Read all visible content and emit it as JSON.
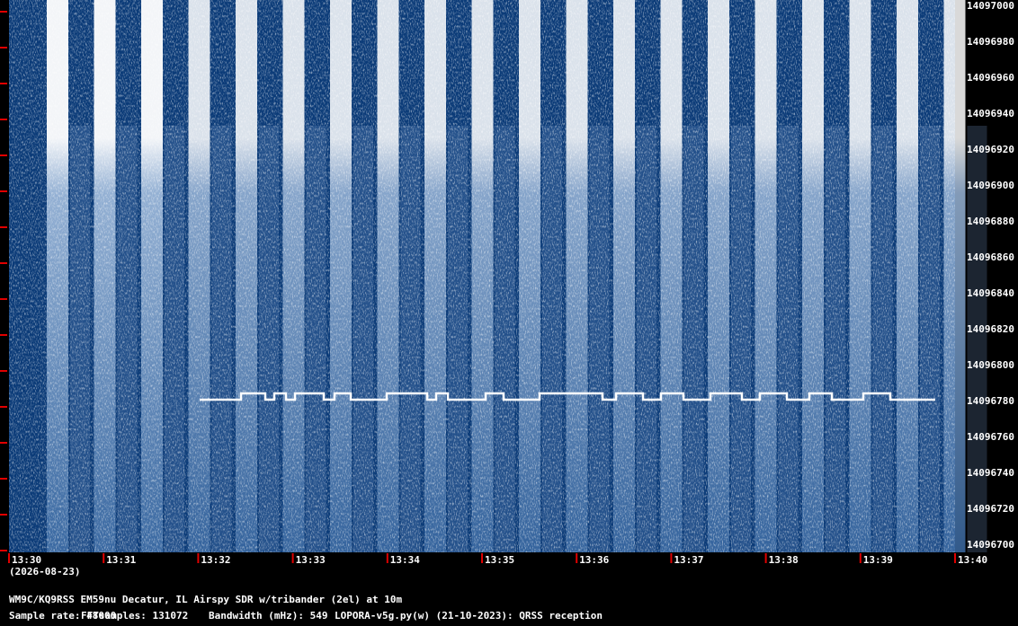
{
  "chart_data": {
    "type": "spectrogram",
    "ylim": [
      14096700,
      14097000
    ],
    "yticks": [
      14096700,
      14096720,
      14096740,
      14096760,
      14096780,
      14096800,
      14096820,
      14096840,
      14096860,
      14096880,
      14096900,
      14096920,
      14096940,
      14096960,
      14096980,
      14097000
    ],
    "xtick_labels": [
      "13:30",
      "13:31",
      "13:32",
      "13:33",
      "13:34",
      "13:35",
      "13:36",
      "13:37",
      "13:38",
      "13:39",
      "13:40"
    ],
    "date": "(2026-08-23)",
    "station": "WM9C/KQ9RSS EM59nu Decatur, IL  Airspy SDR w/tribander (2el) at 10m",
    "footer": [
      "Sample rate: 48000",
      "FFTsamples: 131072",
      "Bandwidth (mHz): 549",
      "LOPORA-v5g.py(w) (21-10-2023): QRSS reception"
    ],
    "tick_color": "#e00000",
    "background": "#0b3b78"
  }
}
